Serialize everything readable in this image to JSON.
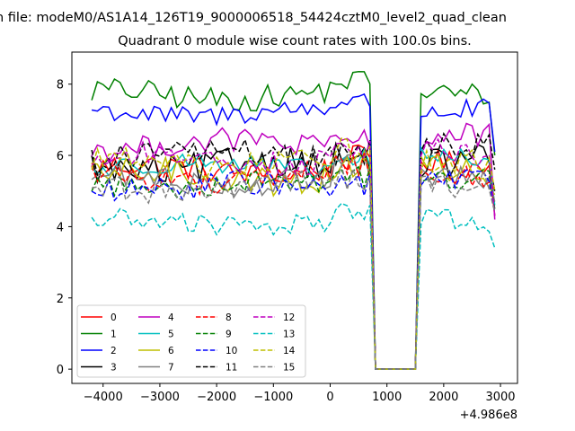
{
  "chart_data": {
    "type": "line",
    "suptitle": "n file: modeM0/AS1A14_126T19_9000006518_54424cztM0_level2_quad_clean",
    "title": "Quadrant 0 module wise count rates with 100.0s bins.",
    "xlabel": "",
    "ylabel": "",
    "x_offset_label": "+4.986e8",
    "xlim": [
      -4550,
      3300
    ],
    "ylim": [
      -0.4,
      8.9
    ],
    "xticks": [
      -4000,
      -3000,
      -2000,
      -1000,
      0,
      1000,
      2000,
      3000
    ],
    "xtick_labels": [
      "−4000",
      "−3000",
      "−2000",
      "−1000",
      "0",
      "1000",
      "2000",
      "3000"
    ],
    "yticks": [
      0,
      2,
      4,
      6,
      8
    ],
    "ytick_labels": [
      "0",
      "2",
      "4",
      "6",
      "8"
    ],
    "grid": false,
    "legend_placement": "lower-left",
    "x_range": [
      -4200,
      2950
    ],
    "step": 100,
    "gap": [
      800,
      1500
    ],
    "series": [
      {
        "name": "0",
        "color": "#ff0000",
        "dash": false,
        "base": 5.6,
        "amp": 0.35,
        "end": 4.3
      },
      {
        "name": "1",
        "color": "#008000",
        "dash": false,
        "base": 7.7,
        "amp": 0.35,
        "end": 6.0
      },
      {
        "name": "2",
        "color": "#0000ff",
        "dash": false,
        "base": 7.2,
        "amp": 0.3,
        "end": 6.1
      },
      {
        "name": "3",
        "color": "#000000",
        "dash": false,
        "base": 5.7,
        "amp": 0.45,
        "end": 5.0
      },
      {
        "name": "4",
        "color": "#bf00bf",
        "dash": false,
        "base": 6.3,
        "amp": 0.35,
        "end": 4.2
      },
      {
        "name": "5",
        "color": "#00bfbf",
        "dash": false,
        "base": 5.7,
        "amp": 0.3,
        "end": 4.6
      },
      {
        "name": "6",
        "color": "#bfbf00",
        "dash": false,
        "base": 5.4,
        "amp": 0.4,
        "end": 4.9
      },
      {
        "name": "7",
        "color": "#808080",
        "dash": false,
        "base": 5.3,
        "amp": 0.35,
        "end": 4.7
      },
      {
        "name": "8",
        "color": "#ff0000",
        "dash": true,
        "base": 5.4,
        "amp": 0.35,
        "end": 5.0
      },
      {
        "name": "9",
        "color": "#008000",
        "dash": true,
        "base": 5.2,
        "amp": 0.3,
        "end": 4.5
      },
      {
        "name": "10",
        "color": "#0000ff",
        "dash": true,
        "base": 5.1,
        "amp": 0.35,
        "end": 4.4
      },
      {
        "name": "11",
        "color": "#000000",
        "dash": true,
        "base": 6.0,
        "amp": 0.4,
        "end": 5.6
      },
      {
        "name": "12",
        "color": "#bf00bf",
        "dash": true,
        "base": 5.9,
        "amp": 0.35,
        "end": 4.3
      },
      {
        "name": "13",
        "color": "#00bfbf",
        "dash": true,
        "base": 4.1,
        "amp": 0.3,
        "end": 3.4
      },
      {
        "name": "14",
        "color": "#bfbf00",
        "dash": true,
        "base": 5.8,
        "amp": 0.35,
        "end": 5.0
      },
      {
        "name": "15",
        "color": "#808080",
        "dash": true,
        "base": 5.1,
        "amp": 0.35,
        "end": 4.4
      }
    ]
  }
}
